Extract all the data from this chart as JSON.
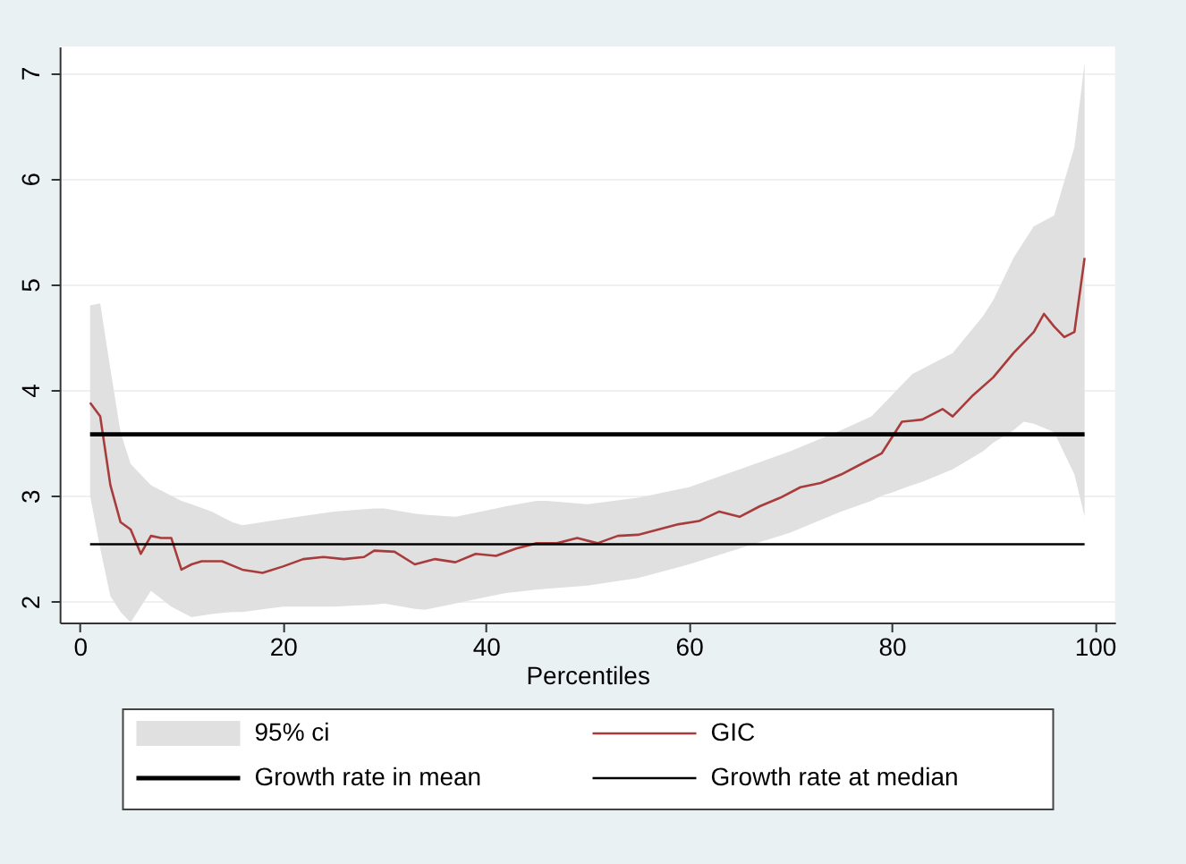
{
  "chart_data": {
    "type": "line",
    "xlabel": "Percentiles",
    "xlim": [
      -2,
      102
    ],
    "xticks": [
      0,
      20,
      40,
      60,
      80,
      100
    ],
    "ylim": [
      1.8,
      7.25
    ],
    "yticks": [
      2,
      3,
      4,
      5,
      6,
      7
    ],
    "grid": "y",
    "legend": "bottom",
    "series": [
      {
        "type": "area",
        "name": "95% ci",
        "color": "#e0e0e0",
        "x": [
          1,
          2,
          3,
          4,
          5,
          7,
          9,
          10,
          11,
          13,
          15,
          16,
          20,
          25,
          29,
          30,
          33,
          34,
          37,
          38,
          41,
          42,
          45,
          46,
          50,
          55,
          60,
          65,
          70,
          75,
          78,
          79,
          80,
          82,
          83,
          86,
          89,
          90,
          92,
          93,
          94,
          96,
          98,
          99
        ],
        "values": [
          null,
          null,
          null,
          null,
          null,
          null,
          null,
          null,
          null,
          null,
          null,
          null,
          null,
          null,
          null,
          null,
          null,
          null,
          null,
          null,
          null,
          null,
          null,
          null,
          null,
          null,
          null,
          null,
          null,
          null,
          null,
          null,
          null,
          null,
          null,
          null,
          null,
          null,
          null,
          null,
          null,
          null,
          null,
          null
        ],
        "upper": [
          4.8,
          4.82,
          4.2,
          3.6,
          3.3,
          3.1,
          3.0,
          2.95,
          2.92,
          2.85,
          2.75,
          2.72,
          2.78,
          2.85,
          2.88,
          2.88,
          2.83,
          2.82,
          2.8,
          2.82,
          2.88,
          2.9,
          2.95,
          2.95,
          2.92,
          2.98,
          3.08,
          3.25,
          3.42,
          3.62,
          3.75,
          3.85,
          3.95,
          4.15,
          4.2,
          4.35,
          4.7,
          4.85,
          5.25,
          5.4,
          5.55,
          5.65,
          6.3,
          7.1
        ],
        "lower": [
          3.0,
          2.5,
          2.05,
          1.9,
          1.8,
          2.1,
          1.95,
          1.9,
          1.85,
          1.88,
          1.9,
          1.9,
          1.95,
          1.95,
          1.97,
          1.98,
          1.93,
          1.92,
          1.98,
          2.0,
          2.06,
          2.08,
          2.11,
          2.12,
          2.15,
          2.22,
          2.35,
          2.5,
          2.65,
          2.85,
          2.95,
          3.0,
          3.03,
          3.1,
          3.13,
          3.25,
          3.42,
          3.5,
          3.62,
          3.7,
          3.68,
          3.6,
          3.2,
          2.8
        ]
      },
      {
        "type": "line",
        "name": "GIC",
        "color": "#a83c3c",
        "x": [
          1,
          2,
          3,
          4,
          5,
          6,
          7,
          8,
          9,
          10,
          11,
          12,
          14,
          16,
          18,
          20,
          22,
          24,
          26,
          28,
          29,
          31,
          33,
          35,
          37,
          39,
          41,
          43,
          45,
          47,
          49,
          51,
          53,
          55,
          57,
          59,
          61,
          63,
          65,
          67,
          69,
          71,
          73,
          75,
          77,
          79,
          80,
          81,
          83,
          85,
          86,
          88,
          90,
          92,
          94,
          95,
          96,
          97,
          98,
          99
        ],
        "values": [
          3.88,
          3.75,
          3.1,
          2.75,
          2.68,
          2.45,
          2.62,
          2.6,
          2.6,
          2.3,
          2.35,
          2.38,
          2.38,
          2.3,
          2.27,
          2.33,
          2.4,
          2.42,
          2.4,
          2.42,
          2.48,
          2.47,
          2.35,
          2.4,
          2.37,
          2.45,
          2.43,
          2.5,
          2.55,
          2.55,
          2.6,
          2.55,
          2.62,
          2.63,
          2.68,
          2.73,
          2.76,
          2.85,
          2.8,
          2.9,
          2.98,
          3.08,
          3.12,
          3.2,
          3.3,
          3.4,
          3.55,
          3.7,
          3.72,
          3.82,
          3.75,
          3.95,
          4.12,
          4.35,
          4.55,
          4.72,
          4.6,
          4.5,
          4.55,
          5.25
        ]
      },
      {
        "type": "line",
        "name": "Growth rate in mean",
        "color": "#000000",
        "x": [
          1,
          99
        ],
        "values": [
          3.58,
          3.58
        ]
      },
      {
        "type": "line",
        "name": "Growth rate at median",
        "color": "#000000",
        "x": [
          1,
          99
        ],
        "values": [
          2.54,
          2.54
        ]
      }
    ]
  }
}
